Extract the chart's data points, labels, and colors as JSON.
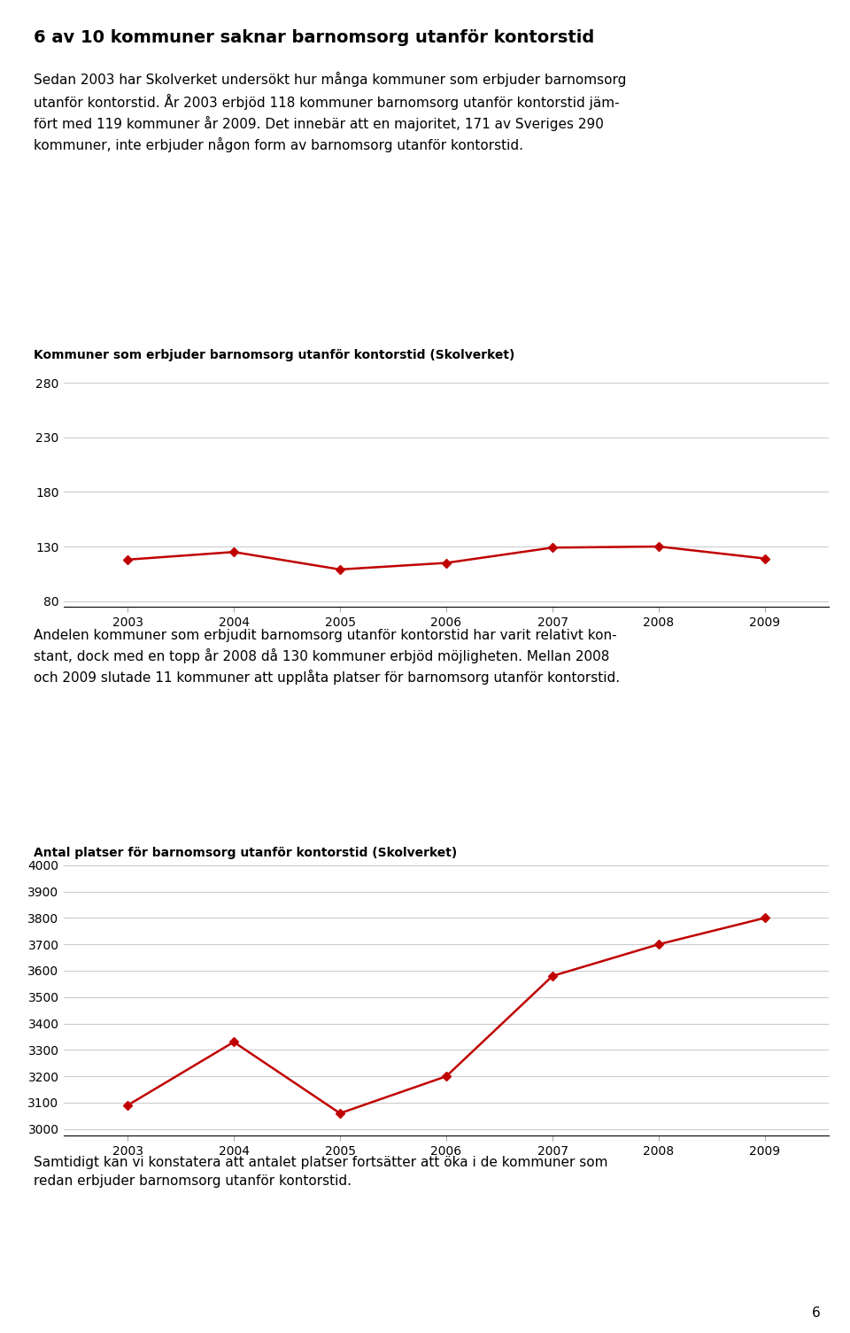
{
  "title_main": "6 av 10 kommuner saknar barnomsorg utanför kontorstid",
  "para1_lines": [
    "Sedan 2003 har Skolverket undersökt hur många kommuner som erbjuder barnomsorg",
    "utanför kontorstid. År 2003 erbjöd 118 kommuner barnomsorg utanför kontorstid jäm-",
    "fört med 119 kommuner år 2009. Det innebär att en majoritet, 171 av Sveriges 290",
    "kommuner, inte erbjuder någon form av barnomsorg utanför kontorstid."
  ],
  "chart1_title": "Kommuner som erbjuder barnomsorg utanför kontorstid (Skolverket)",
  "chart1_years": [
    2003,
    2004,
    2005,
    2006,
    2007,
    2008,
    2009
  ],
  "chart1_values": [
    118,
    125,
    109,
    115,
    129,
    130,
    119
  ],
  "chart1_yticks": [
    80,
    130,
    180,
    230,
    280
  ],
  "chart1_ylim": [
    75,
    295
  ],
  "para2_lines": [
    "Andelen kommuner som erbjudit barnomsorg utanför kontorstid har varit relativt kon-",
    "stant, dock med en topp år 2008 då 130 kommuner erbjöd möjligheten. Mellan 2008",
    "och 2009 slutade 11 kommuner att upplåta platser för barnomsorg utanför kontorstid."
  ],
  "chart2_title": "Antal platser för barnomsorg utanför kontorstid (Skolverket)",
  "chart2_years": [
    2003,
    2004,
    2005,
    2006,
    2007,
    2008,
    2009
  ],
  "chart2_values": [
    3090,
    3330,
    3060,
    3200,
    3580,
    3700,
    3800
  ],
  "chart2_yticks": [
    3000,
    3100,
    3200,
    3300,
    3400,
    3500,
    3600,
    3700,
    3800,
    3900,
    4000
  ],
  "chart2_ylim": [
    2975,
    4010
  ],
  "para3_lines": [
    "Samtidigt kan vi konstatera att antalet platser fortsätter att öka i de kommuner som",
    "redan erbjuder barnomsorg utanför kontorstid."
  ],
  "line_color": "#c00000",
  "grid_color": "#cccccc",
  "page_number": "6",
  "bg_color": "#ffffff"
}
